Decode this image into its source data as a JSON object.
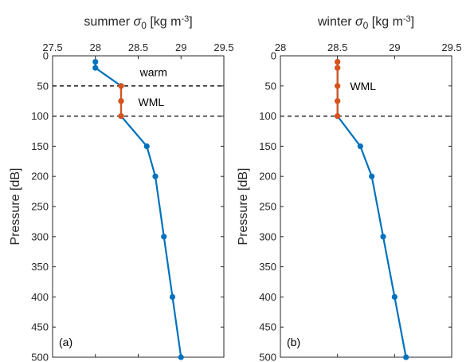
{
  "chart_data": [
    {
      "type": "line",
      "panel": "(a)",
      "title_main": "summer ",
      "title_sigma": "σ",
      "title_sub": "0",
      "title_unit": " [kg m",
      "title_exp": "-3",
      "title_close": "]",
      "ylabel": "Pressure [dB]",
      "xlim": [
        27.5,
        29.5
      ],
      "ylim": [
        500,
        0
      ],
      "xticks": [
        "27.5",
        "28",
        "28.5",
        "29",
        "29.5"
      ],
      "yticks": [
        "0",
        "50",
        "100",
        "150",
        "200",
        "250",
        "300",
        "350",
        "400",
        "450",
        "500"
      ],
      "series": [
        {
          "color": "#0072BD",
          "points": [
            [
              28.0,
              10
            ],
            [
              28.0,
              20
            ],
            [
              28.3,
              50
            ],
            [
              28.3,
              75
            ],
            [
              28.3,
              100
            ],
            [
              28.6,
              150
            ],
            [
              28.7,
              200
            ],
            [
              28.8,
              300
            ],
            [
              28.9,
              400
            ],
            [
              29.0,
              500
            ]
          ]
        },
        {
          "color": "#D95319",
          "points": [
            [
              28.3,
              50
            ],
            [
              28.3,
              75
            ],
            [
              28.3,
              100
            ]
          ]
        }
      ],
      "dashed_lines": [
        50,
        100
      ],
      "annotations": [
        {
          "text": "warm",
          "x": 28.52,
          "y": 27
        },
        {
          "text": "WML",
          "x": 28.5,
          "y": 77
        }
      ]
    },
    {
      "type": "line",
      "panel": "(b)",
      "title_main": "winter ",
      "title_sigma": "σ",
      "title_sub": "0",
      "title_unit": " [kg m",
      "title_exp": "-3",
      "title_close": "]",
      "ylabel": "Pressure [dB]",
      "xlim": [
        28,
        29.5
      ],
      "ylim": [
        500,
        0
      ],
      "xticks": [
        "28",
        "28.5",
        "29",
        "29.5"
      ],
      "yticks": [
        "0",
        "50",
        "100",
        "150",
        "200",
        "250",
        "300",
        "350",
        "400",
        "450",
        "500"
      ],
      "series": [
        {
          "color": "#0072BD",
          "points": [
            [
              28.5,
              10
            ],
            [
              28.5,
              20
            ],
            [
              28.5,
              50
            ],
            [
              28.5,
              75
            ],
            [
              28.5,
              100
            ],
            [
              28.7,
              150
            ],
            [
              28.8,
              200
            ],
            [
              28.9,
              300
            ],
            [
              29.0,
              400
            ],
            [
              29.1,
              500
            ]
          ]
        },
        {
          "color": "#D95319",
          "points": [
            [
              28.5,
              10
            ],
            [
              28.5,
              20
            ],
            [
              28.5,
              50
            ],
            [
              28.5,
              75
            ],
            [
              28.5,
              100
            ]
          ]
        }
      ],
      "dashed_lines": [
        100
      ],
      "annotations": [
        {
          "text": "WML",
          "x": 28.61,
          "y": 50
        }
      ]
    }
  ]
}
